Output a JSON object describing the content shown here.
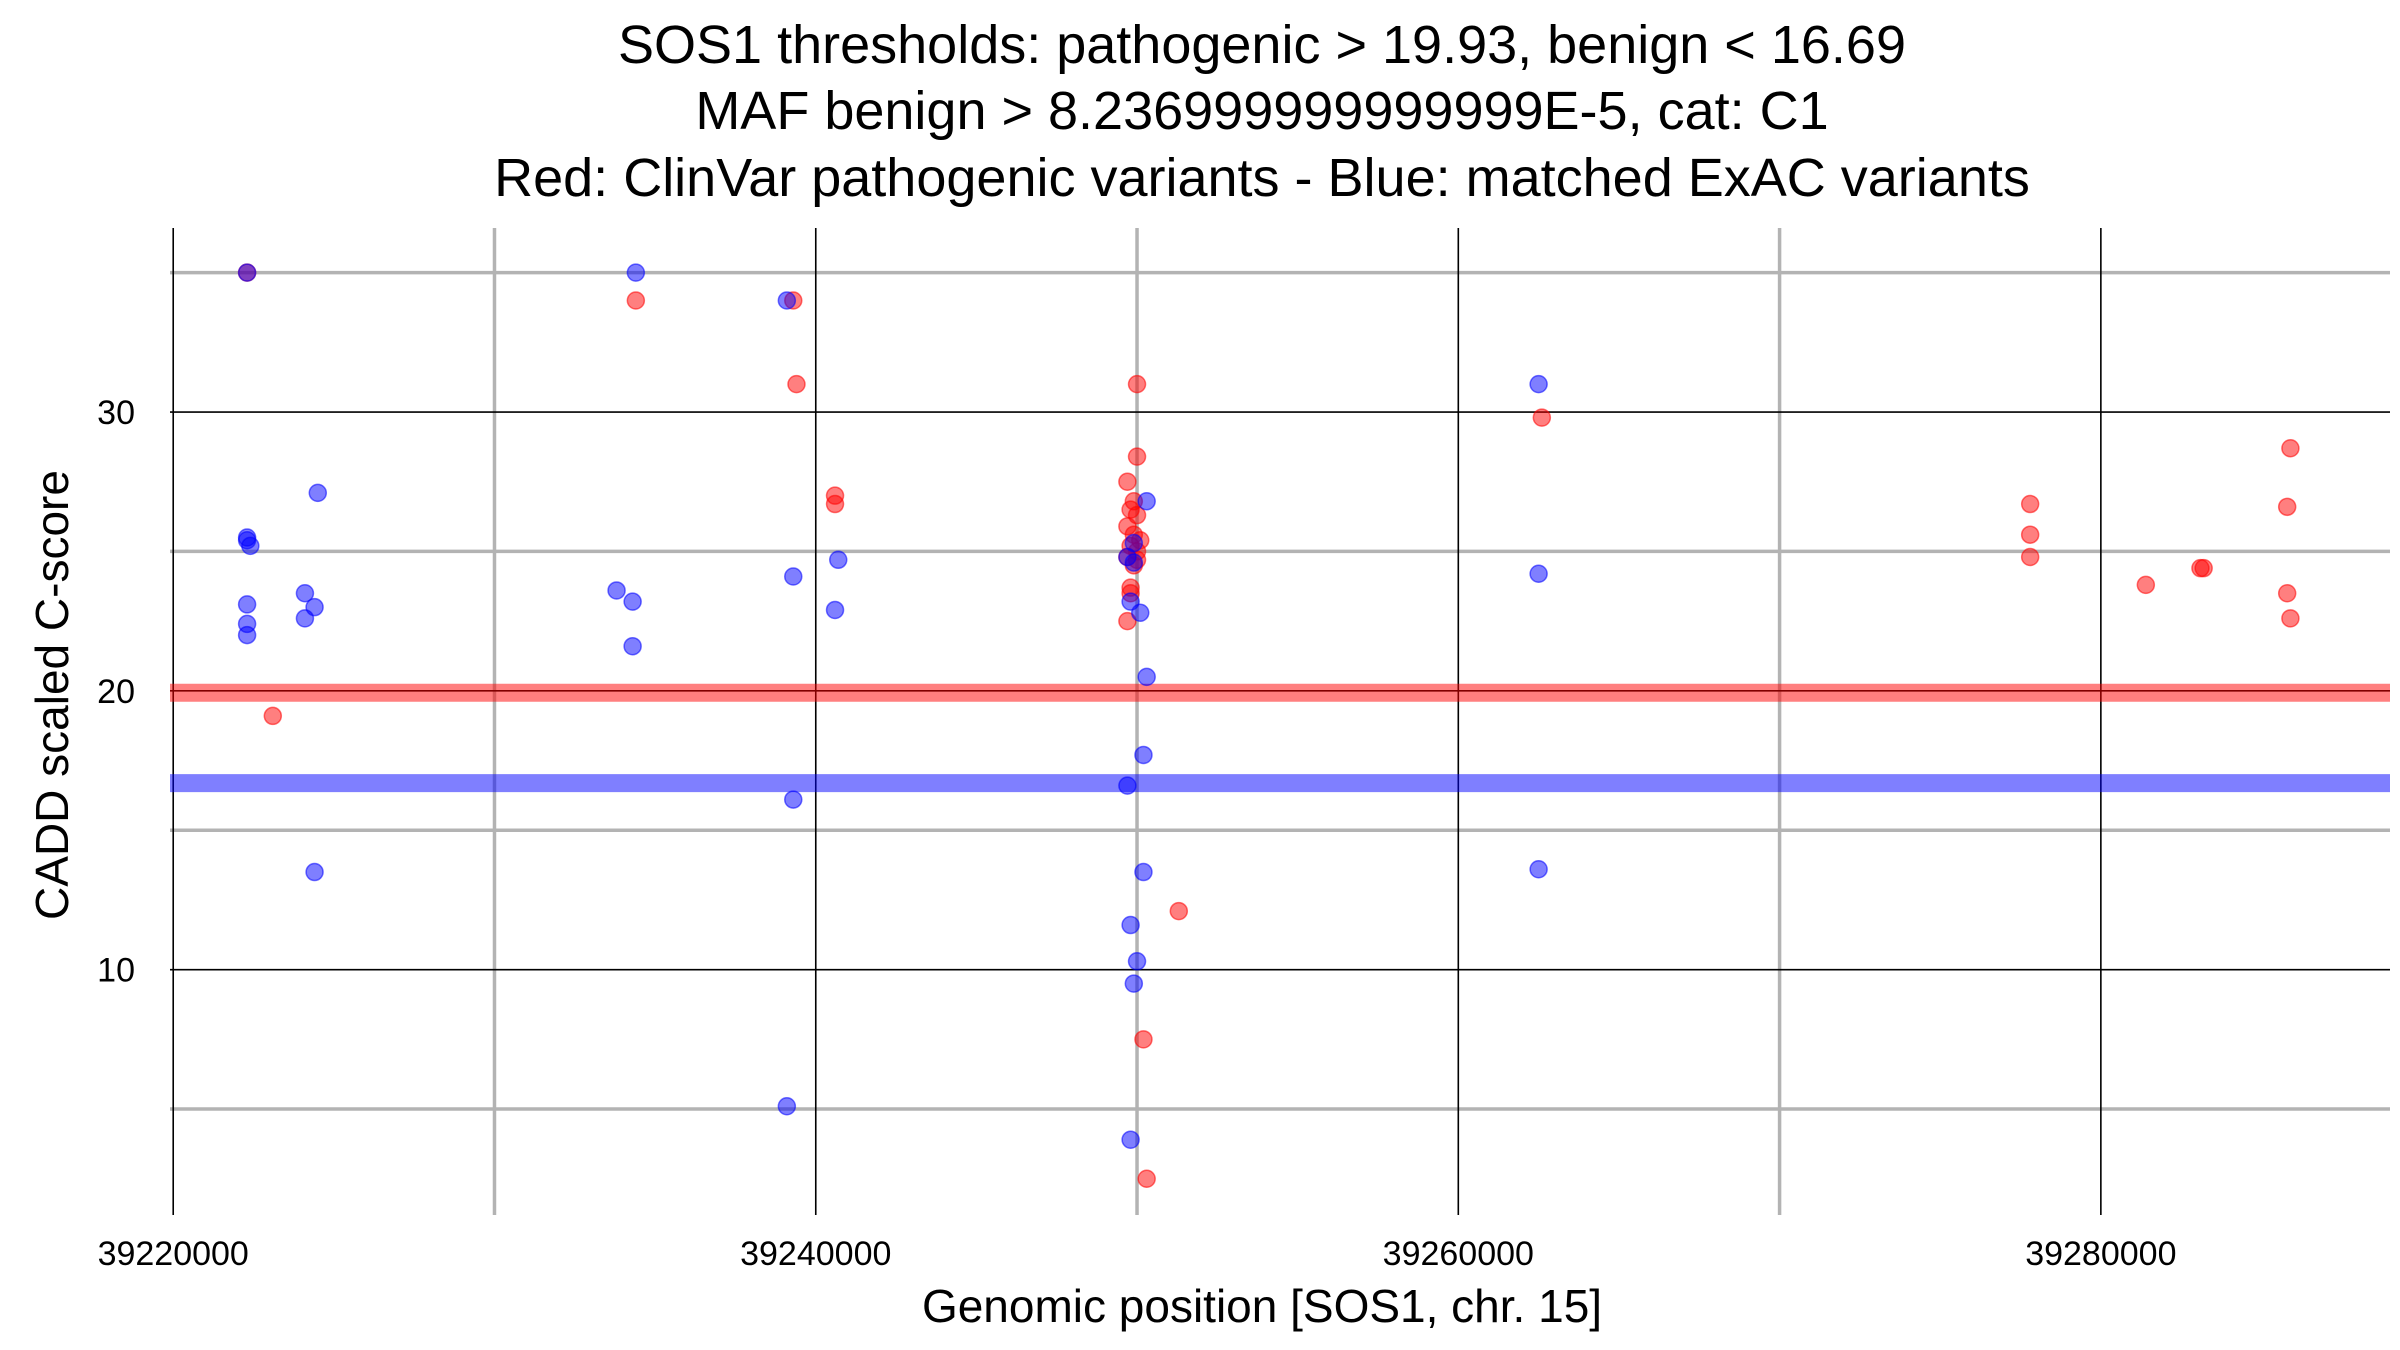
{
  "chart_data": {
    "type": "scatter",
    "title": [
      "SOS1 thresholds: pathogenic > 19.93, benign < 16.69",
      "MAF benign > 8.236999999999999E-5, cat: C1",
      "Red: ClinVar pathogenic variants - Blue: matched ExAC variants"
    ],
    "xlabel": "Genomic position [SOS1, chr. 15]",
    "ylabel": "CADD scaled C-score",
    "xlim": [
      39219900,
      39289000
    ],
    "ylim": [
      1.2,
      36.6
    ],
    "x_major_ticks": [
      39220000,
      39240000,
      39260000,
      39280000
    ],
    "x_tick_labels": [
      "39220000",
      "39240000",
      "39260000",
      "39280000"
    ],
    "x_minor_ticks": [
      39230000,
      39250000,
      39270000
    ],
    "y_major_ticks": [
      10,
      20,
      30
    ],
    "y_tick_labels": [
      "10",
      "20",
      "30"
    ],
    "y_minor_ticks": [
      5,
      15,
      25,
      35
    ],
    "thresholds": [
      {
        "name": "pathogenic",
        "value": 19.93,
        "color": "#ff0000"
      },
      {
        "name": "benign",
        "value": 16.69,
        "color": "#0000ff"
      }
    ],
    "series": [
      {
        "name": "ClinVar pathogenic variants",
        "color": "#ff0000",
        "points": [
          [
            39222300,
            35.0
          ],
          [
            39223100,
            19.1
          ],
          [
            39234400,
            34.0
          ],
          [
            39239300,
            34.0
          ],
          [
            39239400,
            31.0
          ],
          [
            39240600,
            27.0
          ],
          [
            39240600,
            26.7
          ],
          [
            39250000,
            31.0
          ],
          [
            39250000,
            28.4
          ],
          [
            39249700,
            27.5
          ],
          [
            39249900,
            26.8
          ],
          [
            39249800,
            26.5
          ],
          [
            39250000,
            26.3
          ],
          [
            39249700,
            25.9
          ],
          [
            39249900,
            25.6
          ],
          [
            39250100,
            25.4
          ],
          [
            39249800,
            25.2
          ],
          [
            39250000,
            25.0
          ],
          [
            39249700,
            24.8
          ],
          [
            39250000,
            24.7
          ],
          [
            39249900,
            24.5
          ],
          [
            39249800,
            23.7
          ],
          [
            39249800,
            23.5
          ],
          [
            39249700,
            22.5
          ],
          [
            39251300,
            12.1
          ],
          [
            39250200,
            7.5
          ],
          [
            39250300,
            2.5
          ],
          [
            39262600,
            29.8
          ],
          [
            39277800,
            26.7
          ],
          [
            39277800,
            25.6
          ],
          [
            39277800,
            24.8
          ],
          [
            39281400,
            23.8
          ],
          [
            39283100,
            24.4
          ],
          [
            39283200,
            24.4
          ],
          [
            39285900,
            28.7
          ],
          [
            39285800,
            26.6
          ],
          [
            39285800,
            23.5
          ],
          [
            39285900,
            22.6
          ]
        ]
      },
      {
        "name": "matched ExAC variants",
        "color": "#0000ff",
        "points": [
          [
            39222300,
            35.0
          ],
          [
            39222300,
            25.5
          ],
          [
            39222300,
            25.4
          ],
          [
            39222400,
            25.2
          ],
          [
            39222300,
            23.1
          ],
          [
            39222300,
            22.4
          ],
          [
            39222300,
            22.0
          ],
          [
            39224500,
            27.1
          ],
          [
            39224100,
            23.5
          ],
          [
            39224400,
            23.0
          ],
          [
            39224100,
            22.6
          ],
          [
            39224400,
            13.5
          ],
          [
            39233800,
            23.6
          ],
          [
            39234300,
            23.2
          ],
          [
            39234300,
            21.6
          ],
          [
            39234400,
            35.0
          ],
          [
            39239100,
            34.0
          ],
          [
            39239300,
            24.1
          ],
          [
            39239300,
            16.1
          ],
          [
            39239100,
            5.1
          ],
          [
            39240700,
            24.7
          ],
          [
            39240600,
            22.9
          ],
          [
            39250300,
            26.8
          ],
          [
            39249900,
            25.3
          ],
          [
            39249700,
            24.8
          ],
          [
            39249900,
            24.6
          ],
          [
            39249800,
            23.2
          ],
          [
            39250100,
            22.8
          ],
          [
            39250300,
            20.5
          ],
          [
            39250200,
            17.7
          ],
          [
            39249700,
            16.6
          ],
          [
            39250200,
            13.5
          ],
          [
            39249800,
            11.6
          ],
          [
            39250000,
            10.3
          ],
          [
            39249900,
            9.5
          ],
          [
            39249800,
            3.9
          ],
          [
            39262500,
            31.0
          ],
          [
            39262500,
            24.2
          ],
          [
            39262500,
            13.6
          ]
        ]
      }
    ]
  }
}
